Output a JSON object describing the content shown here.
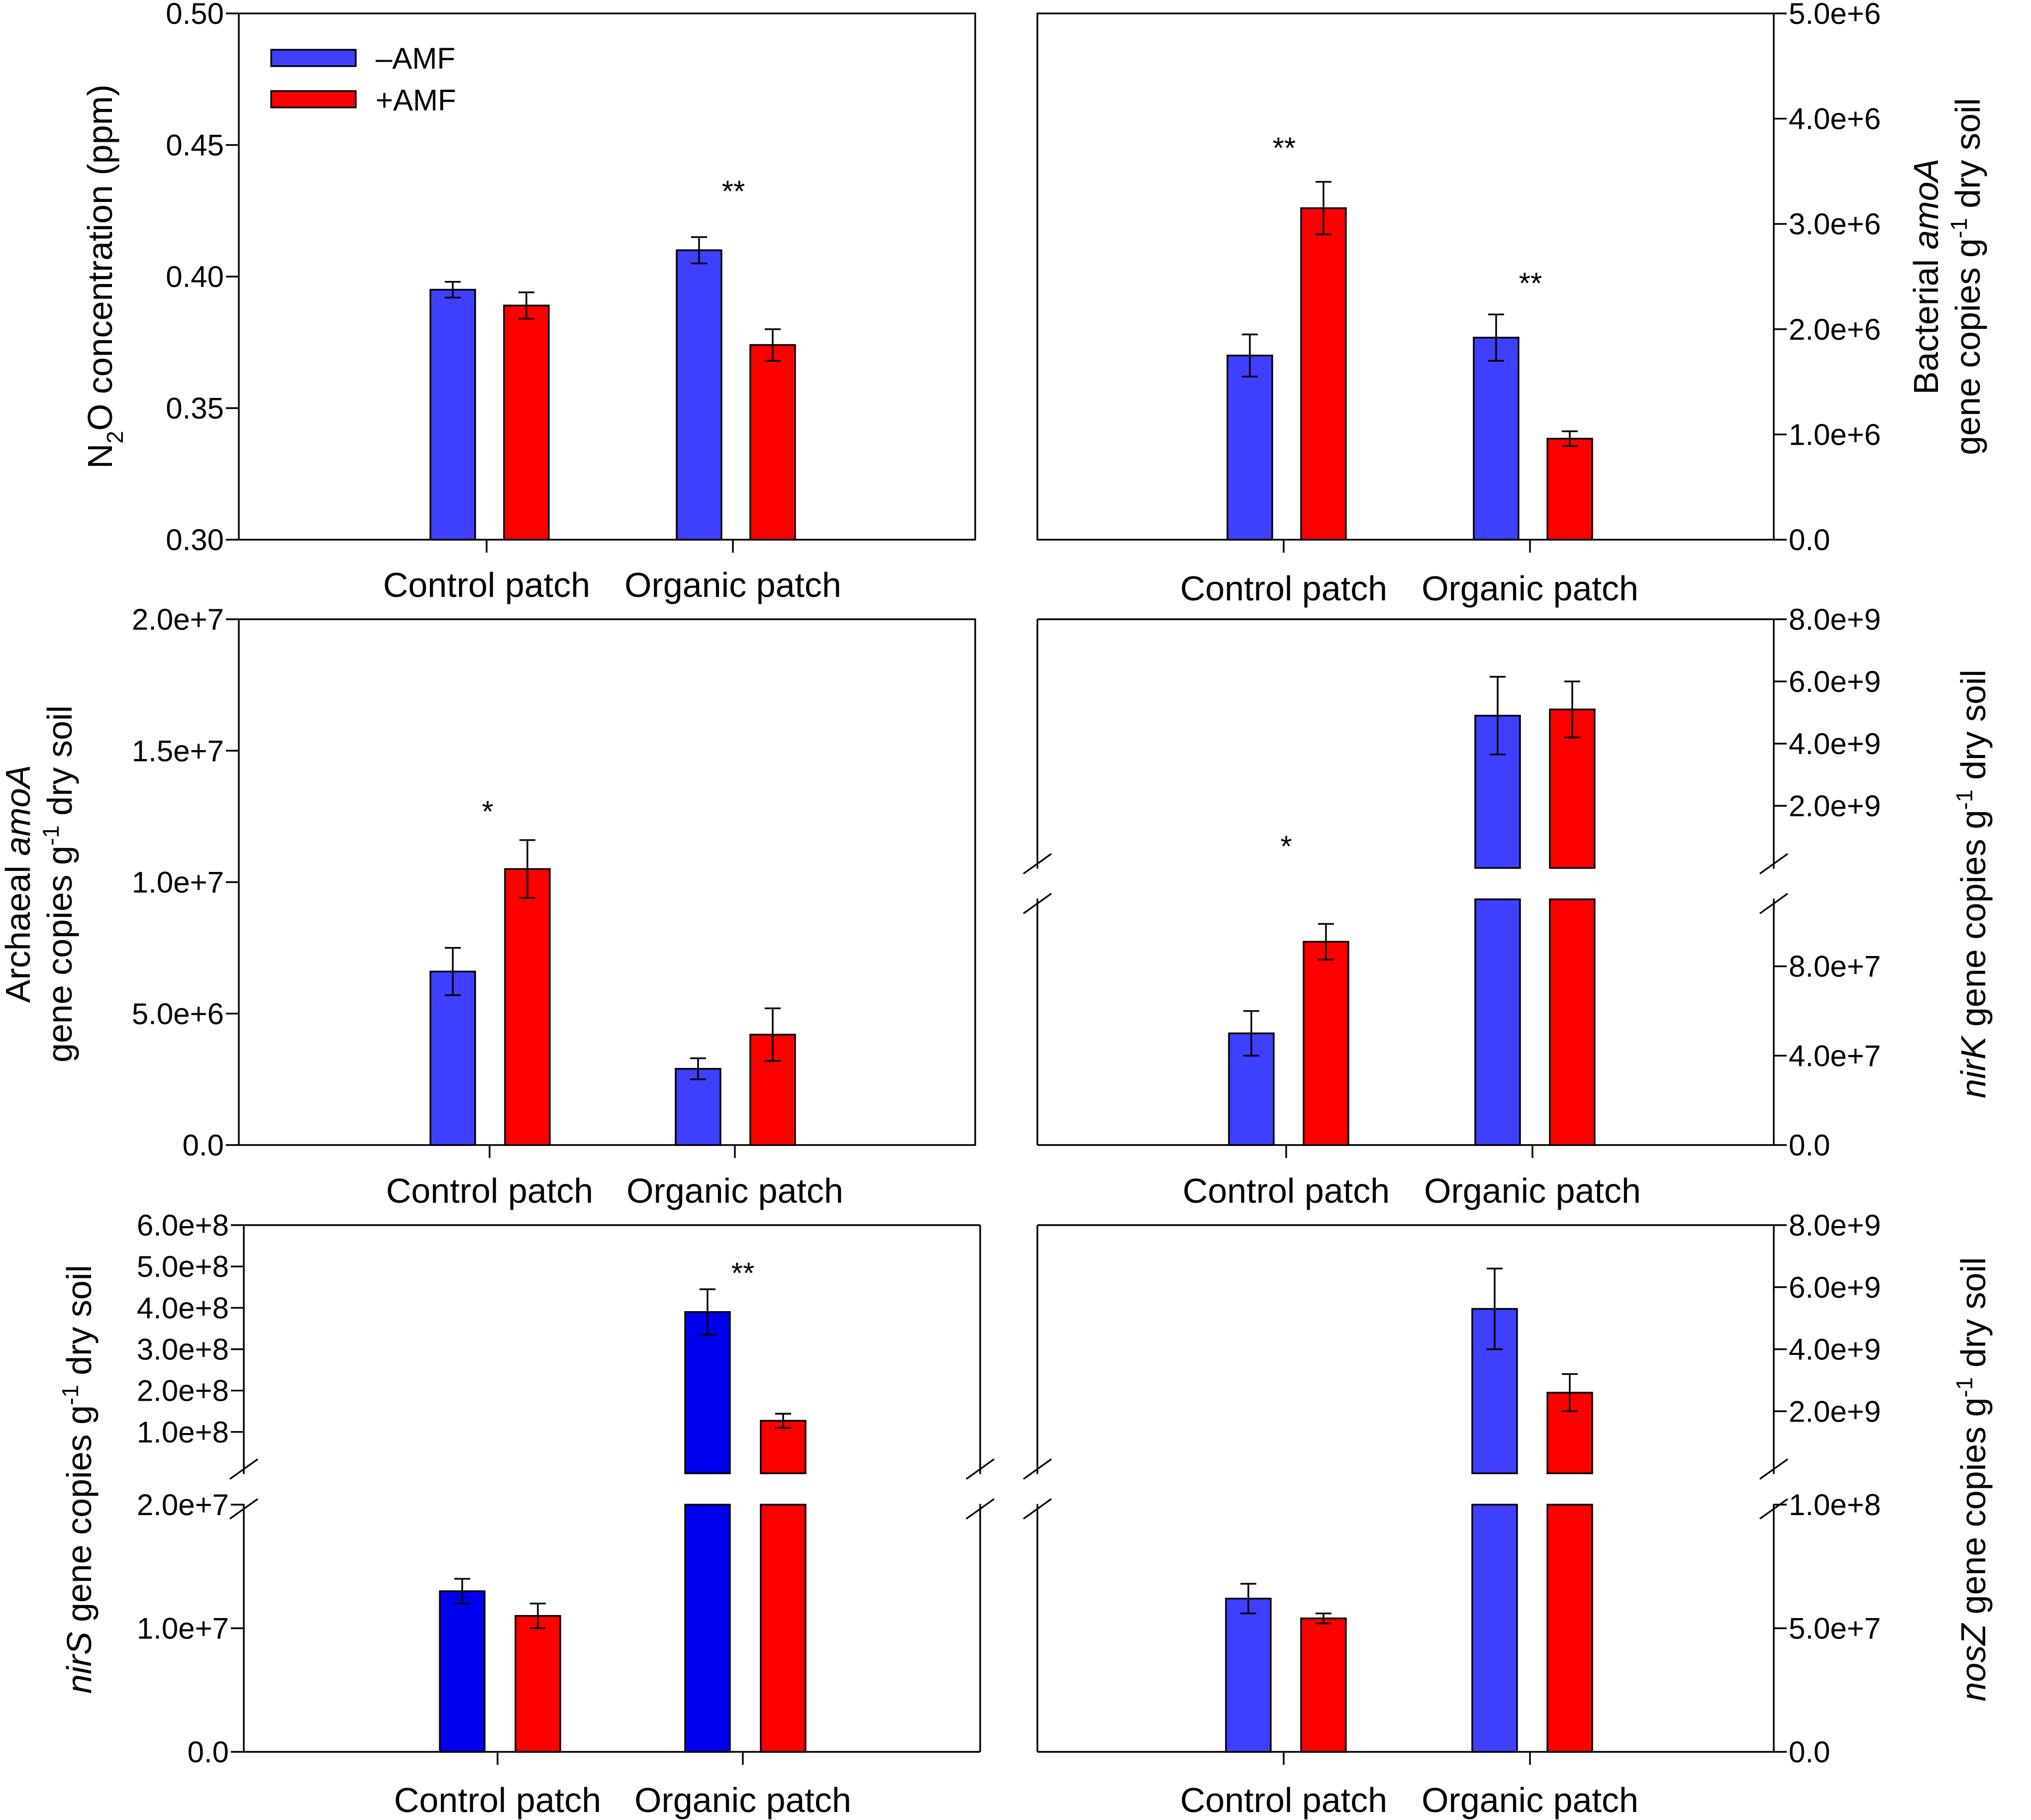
{
  "legend": {
    "minus_label": "–AMF",
    "plus_label": "+AMF"
  },
  "colors": {
    "minus": "#3f3fff",
    "minus_dark": "#0000ee",
    "plus": "#ff0000"
  },
  "chart_data": [
    {
      "id": "n2o",
      "type": "bar",
      "categories": [
        "Control patch",
        "Organic patch"
      ],
      "ylabel": {
        "parts": [
          "N",
          "2",
          "O concentration (ppm)"
        ]
      },
      "ylim": [
        0.3,
        0.5
      ],
      "yticks": [
        "0.30",
        "0.35",
        "0.40",
        "0.45",
        "0.50"
      ],
      "yticks_values": [
        0.3,
        0.35,
        0.4,
        0.45,
        0.5
      ],
      "series": [
        {
          "name": "–AMF",
          "values": [
            0.395,
            0.41
          ],
          "errors": [
            0.003,
            0.005
          ]
        },
        {
          "name": "+AMF",
          "values": [
            0.389,
            0.374
          ],
          "errors": [
            0.005,
            0.006
          ]
        }
      ],
      "significance": [
        "",
        "**"
      ]
    },
    {
      "id": "bacterial-amoa",
      "type": "bar",
      "categories": [
        "Control patch",
        "Organic patch"
      ],
      "ylabel": {
        "line1": [
          "Bacterial ",
          "amoA"
        ],
        "line2": [
          "gene copies g",
          "-1",
          " dry soil"
        ]
      },
      "ylim": [
        0,
        5000000
      ],
      "yticks": [
        "0.0",
        "1.0e+6",
        "2.0e+6",
        "3.0e+6",
        "4.0e+6",
        "5.0e+6"
      ],
      "yticks_values": [
        0,
        1000000,
        2000000,
        3000000,
        4000000,
        5000000
      ],
      "series": [
        {
          "name": "–AMF",
          "values": [
            1750000,
            1920000
          ],
          "errors": [
            200000,
            220000
          ]
        },
        {
          "name": "+AMF",
          "values": [
            3150000,
            960000
          ],
          "errors": [
            250000,
            70000
          ]
        }
      ],
      "significance": [
        "**",
        "**"
      ]
    },
    {
      "id": "archaeal-amoa",
      "type": "bar",
      "categories": [
        "Control patch",
        "Organic patch"
      ],
      "ylabel": {
        "line1": [
          "Archaeal  ",
          "amoA"
        ],
        "line2": [
          "gene copies g",
          "-1",
          " dry soil"
        ]
      },
      "ylim": [
        0,
        20000000
      ],
      "yticks": [
        "0.0",
        "5.0e+6",
        "1.0e+7",
        "1.5e+7",
        "2.0e+7"
      ],
      "yticks_values": [
        0,
        5000000,
        10000000,
        15000000,
        20000000
      ],
      "series": [
        {
          "name": "–AMF",
          "values": [
            6600000,
            2900000
          ],
          "errors": [
            900000,
            400000
          ]
        },
        {
          "name": "+AMF",
          "values": [
            10500000,
            4200000
          ],
          "errors": [
            1100000,
            1000000
          ]
        }
      ],
      "significance": [
        "*",
        ""
      ]
    },
    {
      "id": "nirk",
      "type": "bar",
      "broken_axis": true,
      "categories": [
        "Control patch",
        "Organic patch"
      ],
      "ylabel": {
        "italic": "nirK",
        "rest": [
          " gene copies g",
          "-1",
          " dry soil"
        ]
      },
      "lower": {
        "ylim": [
          0,
          110000000
        ],
        "yticks": [
          "0.0",
          "4.0e+7",
          "8.0e+7"
        ],
        "yticks_values": [
          0,
          40000000,
          80000000
        ]
      },
      "upper": {
        "ylim": [
          0,
          8000000000
        ],
        "yticks": [
          "2.0e+9",
          "4.0e+9",
          "6.0e+9",
          "8.0e+9"
        ],
        "yticks_values": [
          2000000000,
          4000000000,
          6000000000,
          8000000000
        ]
      },
      "series": [
        {
          "name": "–AMF",
          "values": [
            50000000,
            4900000000
          ],
          "errors": [
            10000000,
            1250000000
          ]
        },
        {
          "name": "+AMF",
          "values": [
            91000000,
            5100000000
          ],
          "errors": [
            8000000,
            900000000
          ]
        }
      ],
      "significance": [
        "*",
        ""
      ]
    },
    {
      "id": "nirs",
      "type": "bar",
      "broken_axis": true,
      "categories": [
        "Control patch",
        "Organic patch"
      ],
      "ylabel": {
        "italic": "nirS",
        "rest": [
          " gene copies g",
          "-1",
          " dry soil"
        ]
      },
      "lower": {
        "ylim": [
          0,
          20000000
        ],
        "yticks": [
          "0.0",
          "1.0e+7",
          "2.0e+7"
        ],
        "yticks_values": [
          0,
          10000000,
          20000000
        ]
      },
      "upper": {
        "ylim": [
          0,
          600000000
        ],
        "yticks": [
          "1.0e+8",
          "2.0e+8",
          "3.0e+8",
          "4.0e+8",
          "5.0e+8",
          "6.0e+8"
        ],
        "yticks_values": [
          100000000,
          200000000,
          300000000,
          400000000,
          500000000,
          600000000
        ]
      },
      "series": [
        {
          "name": "–AMF",
          "values": [
            13000000,
            390000000
          ],
          "errors": [
            1000000,
            55000000
          ]
        },
        {
          "name": "+AMF",
          "values": [
            11000000,
            127000000
          ],
          "errors": [
            1000000,
            17000000
          ]
        }
      ],
      "significance": [
        "",
        "**"
      ]
    },
    {
      "id": "nosz",
      "type": "bar",
      "broken_axis": true,
      "categories": [
        "Control patch",
        "Organic patch"
      ],
      "ylabel": {
        "italic": "nosZ",
        "rest": [
          " gene copies g",
          "-1",
          " dry soil"
        ]
      },
      "lower": {
        "ylim": [
          0,
          100000000
        ],
        "yticks": [
          "0.0",
          "5.0e+7",
          "1.0e+8"
        ],
        "yticks_values": [
          0,
          50000000,
          100000000
        ]
      },
      "upper": {
        "ylim": [
          0,
          8000000000
        ],
        "yticks": [
          "2.0e+9",
          "4.0e+9",
          "6.0e+9",
          "8.0e+9"
        ],
        "yticks_values": [
          2000000000,
          4000000000,
          6000000000,
          8000000000
        ]
      },
      "series": [
        {
          "name": "–AMF",
          "values": [
            62000000,
            5300000000
          ],
          "errors": [
            6000000,
            1300000000
          ]
        },
        {
          "name": "+AMF",
          "values": [
            54000000,
            2600000000
          ],
          "errors": [
            2000000,
            600000000
          ]
        }
      ],
      "significance": [
        "",
        ""
      ]
    }
  ]
}
